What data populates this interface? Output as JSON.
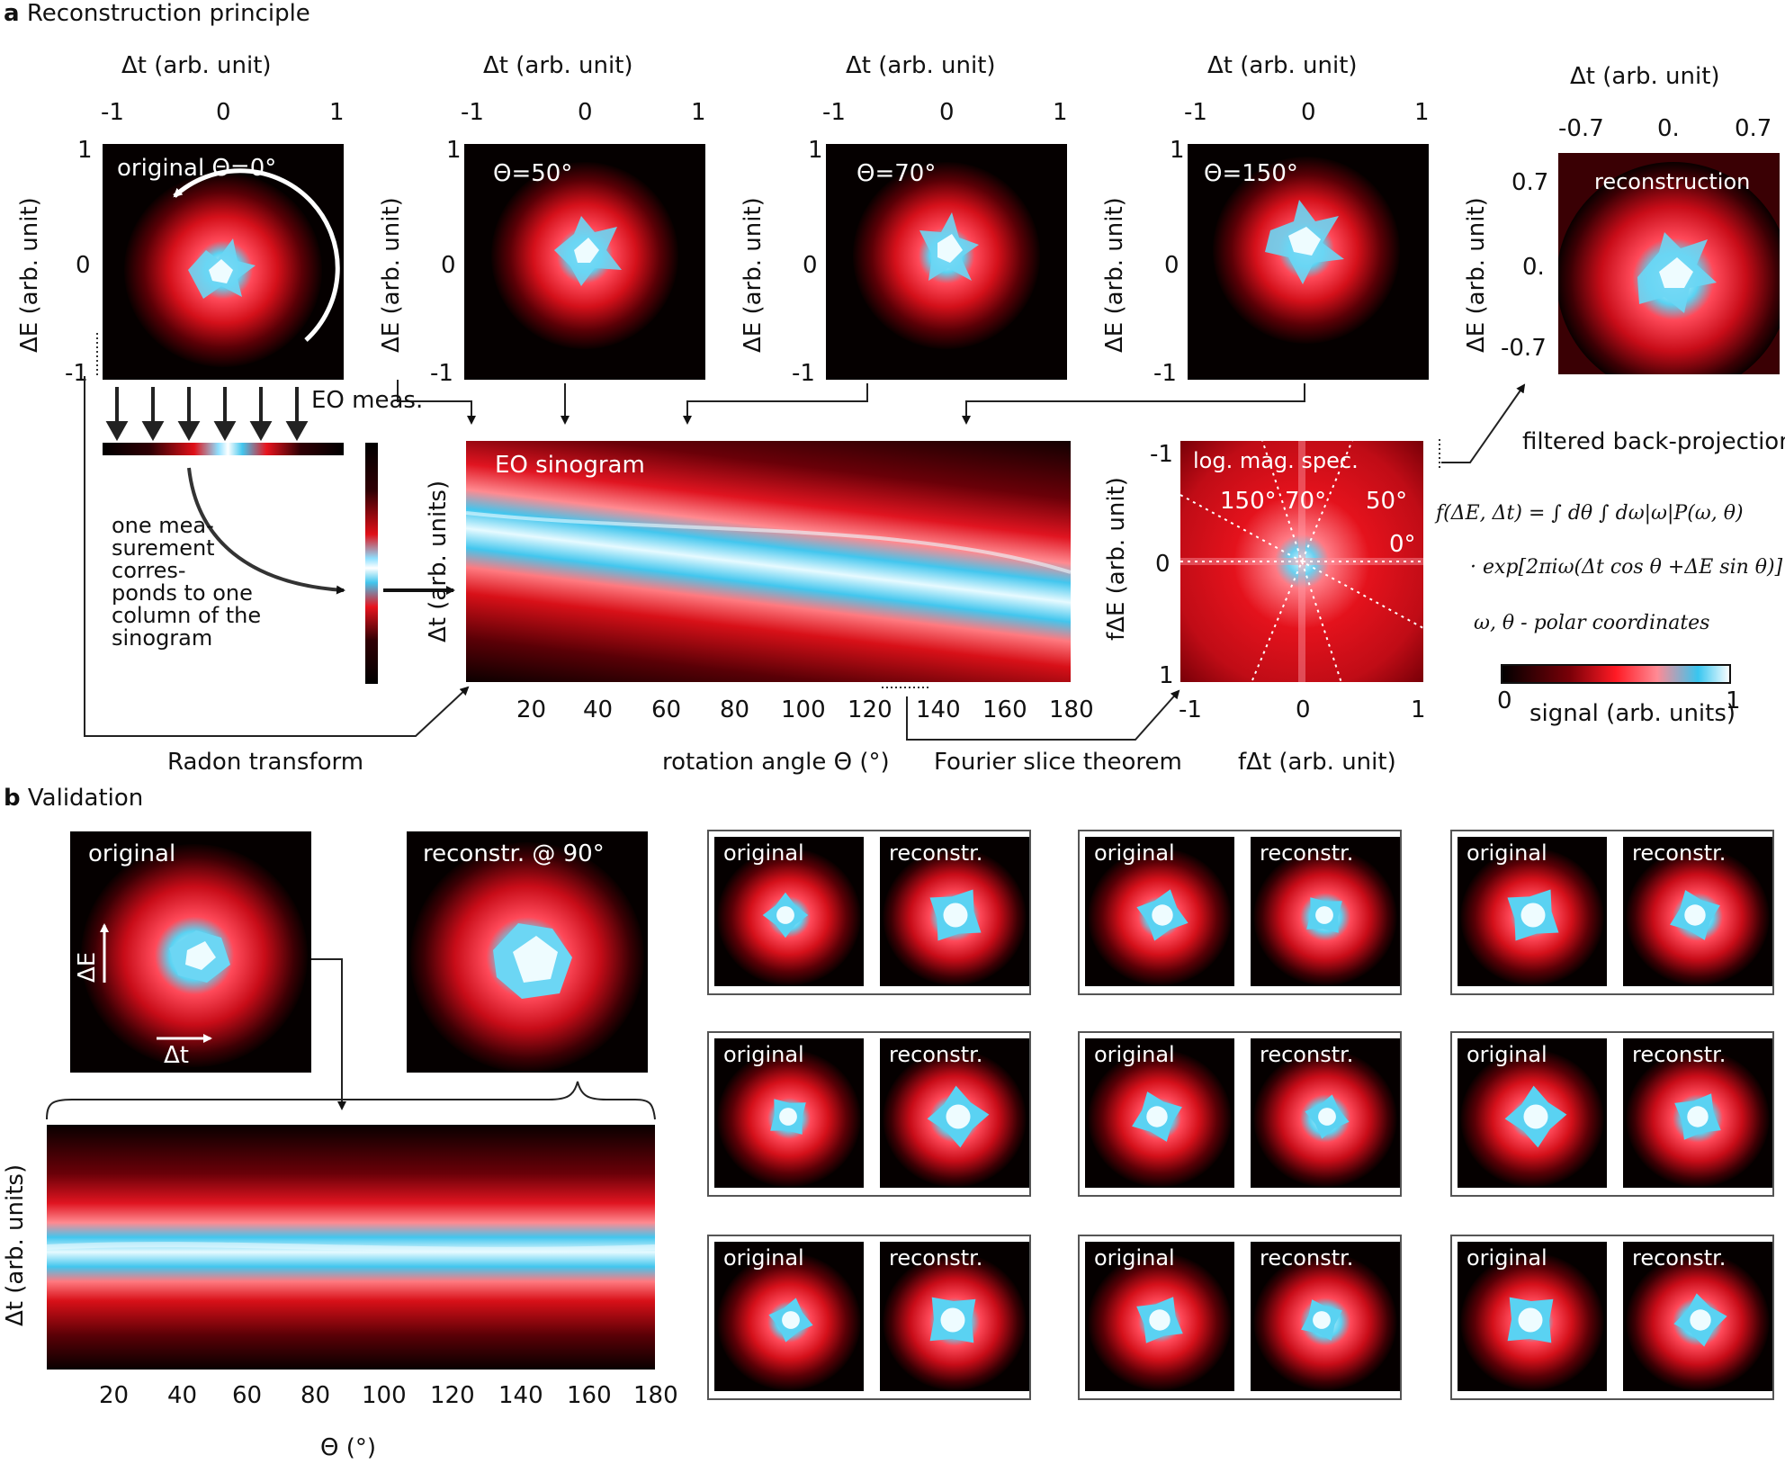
{
  "panel_a": {
    "letter": "a",
    "title": "Reconstruction principle",
    "axes": {
      "dt_label": "Δt (arb. unit)",
      "de_label": "ΔE (arb. unit)",
      "ticks_1": [
        "-1",
        "0",
        "1"
      ],
      "ticks_07": [
        "-0.7",
        "0.",
        "0.7"
      ]
    },
    "images": {
      "original": "original Θ=0°",
      "theta50": "Θ=50°",
      "theta70": "Θ=70°",
      "theta150": "Θ=150°",
      "reconstruction": "reconstruction"
    },
    "eo_meas": "EO meas.",
    "one_measurement": [
      "one mea-",
      "surement",
      "corres-",
      "ponds to one",
      "column of the",
      "sinogram"
    ],
    "sinogram": {
      "label": "EO sinogram",
      "ylabel": "Δt (arb. units)",
      "xticks": [
        "20",
        "40",
        "60",
        "80",
        "100",
        "120",
        "140",
        "160",
        "180"
      ],
      "xlabel": "rotation angle Θ (°)"
    },
    "spectrum": {
      "label": "log. mag. spec.",
      "angles": [
        "150°",
        "70°",
        "50°",
        "0°"
      ],
      "ylabel": "fΔE (arb. unit)",
      "xlabel": "fΔt (arb. unit)",
      "yticks": [
        "-1",
        "0",
        "1"
      ],
      "xticks": [
        "-1",
        "0",
        "1"
      ]
    },
    "radon": "Radon transform",
    "fourier_slice": "Fourier slice theorem",
    "fbp": "filtered back-projection",
    "formula_line1": "f(ΔE, Δt) = ∫ dθ ∫ dω|ω|P(ω, θ)",
    "formula_line2": "· exp[2πiω(Δt cos θ +ΔE sin θ)]",
    "polar": "ω, θ - polar coordinates",
    "colorbar": {
      "min": "0",
      "max": "1",
      "label": "signal (arb. units)"
    }
  },
  "panel_b": {
    "letter": "b",
    "title": "Validation",
    "original": "original",
    "reconstr90": "reconstr. @ 90°",
    "de_arrow": "ΔE",
    "dt_arrow": "Δt",
    "sinogram": {
      "ylabel": "Δt (arb. units)",
      "xticks": [
        "20",
        "40",
        "60",
        "80",
        "100",
        "120",
        "140",
        "160",
        "180"
      ],
      "xlabel": "Θ (°)"
    },
    "pairs": [
      {
        "a": "original",
        "b": "reconstr."
      },
      {
        "a": "original",
        "b": "reconstr."
      },
      {
        "a": "original",
        "b": "reconstr."
      },
      {
        "a": "original",
        "b": "reconstr."
      },
      {
        "a": "original",
        "b": "reconstr."
      },
      {
        "a": "original",
        "b": "reconstr."
      },
      {
        "a": "original",
        "b": "reconstr."
      },
      {
        "a": "original",
        "b": "reconstr."
      },
      {
        "a": "original",
        "b": "reconstr."
      }
    ]
  },
  "colors": {
    "red": "#e0101a",
    "cyan": "#3cc8f0",
    "dark": "#0a0000"
  }
}
